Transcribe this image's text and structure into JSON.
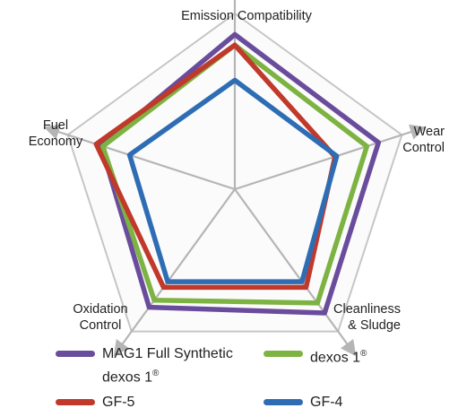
{
  "chart_data": {
    "type": "radar",
    "axes": [
      {
        "label": "Emission Compatibility"
      },
      {
        "label": "Wear Control"
      },
      {
        "label": "Cleanliness & Sludge"
      },
      {
        "label": "Oxidation Control"
      },
      {
        "label": "Fuel Economy"
      }
    ],
    "range": [
      0,
      10
    ],
    "rings": 5,
    "grid": true,
    "legend_position": "bottom",
    "series": [
      {
        "name": "MAG1 Full Synthetic dexos 1®",
        "color": "#6a4c9c",
        "values": [
          8.8,
          8.6,
          8.7,
          8.3,
          8.0
        ]
      },
      {
        "name": "dexos 1®",
        "color": "#7cb342",
        "values": [
          8.2,
          7.9,
          8.0,
          7.8,
          7.9
        ]
      },
      {
        "name": "GF-5",
        "color": "#c0392b",
        "values": [
          8.2,
          6.0,
          6.9,
          6.9,
          8.3
        ]
      },
      {
        "name": "GF-4",
        "color": "#2e6db4",
        "values": [
          6.2,
          6.1,
          6.5,
          6.5,
          6.3
        ]
      }
    ]
  },
  "legend": {
    "items": [
      {
        "name": "MAG1 Full Synthetic dexos 1",
        "sup": "®",
        "color": "#6a4c9c"
      },
      {
        "name": "dexos 1",
        "sup": "®",
        "color": "#7cb342"
      },
      {
        "name": "GF-5",
        "sup": "",
        "color": "#c0392b"
      },
      {
        "name": "GF-4",
        "sup": "",
        "color": "#2e6db4"
      }
    ]
  }
}
